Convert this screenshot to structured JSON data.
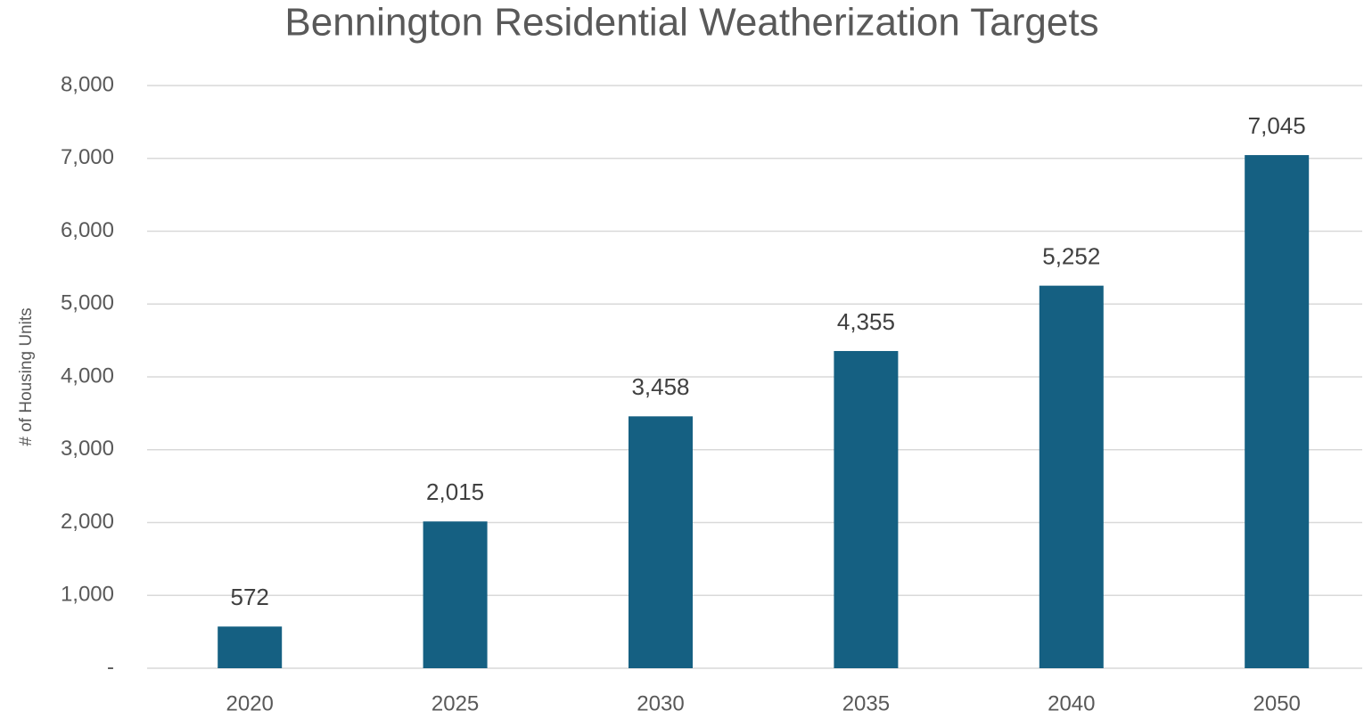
{
  "chart_data": {
    "type": "bar",
    "title": "Bennington Residential Weatherization Targets",
    "y_label": "# of Housing Units",
    "categories": [
      "2020",
      "2025",
      "2030",
      "2035",
      "2040",
      "2050"
    ],
    "values": [
      572,
      2015,
      3458,
      4355,
      5252,
      7045
    ],
    "value_labels": [
      "572",
      "2,015",
      "3,458",
      "4,355",
      "5,252",
      "7,045"
    ],
    "color": "#156082",
    "ylim": [
      0,
      8000
    ],
    "yticks": [
      {
        "value": 0,
        "label": "-"
      },
      {
        "value": 1000,
        "label": "1,000"
      },
      {
        "value": 2000,
        "label": "2,000"
      },
      {
        "value": 3000,
        "label": "3,000"
      },
      {
        "value": 4000,
        "label": "4,000"
      },
      {
        "value": 5000,
        "label": "5,000"
      },
      {
        "value": 6000,
        "label": "6,000"
      },
      {
        "value": 7000,
        "label": "7,000"
      },
      {
        "value": 8000,
        "label": "8,000"
      }
    ],
    "grid": true
  }
}
